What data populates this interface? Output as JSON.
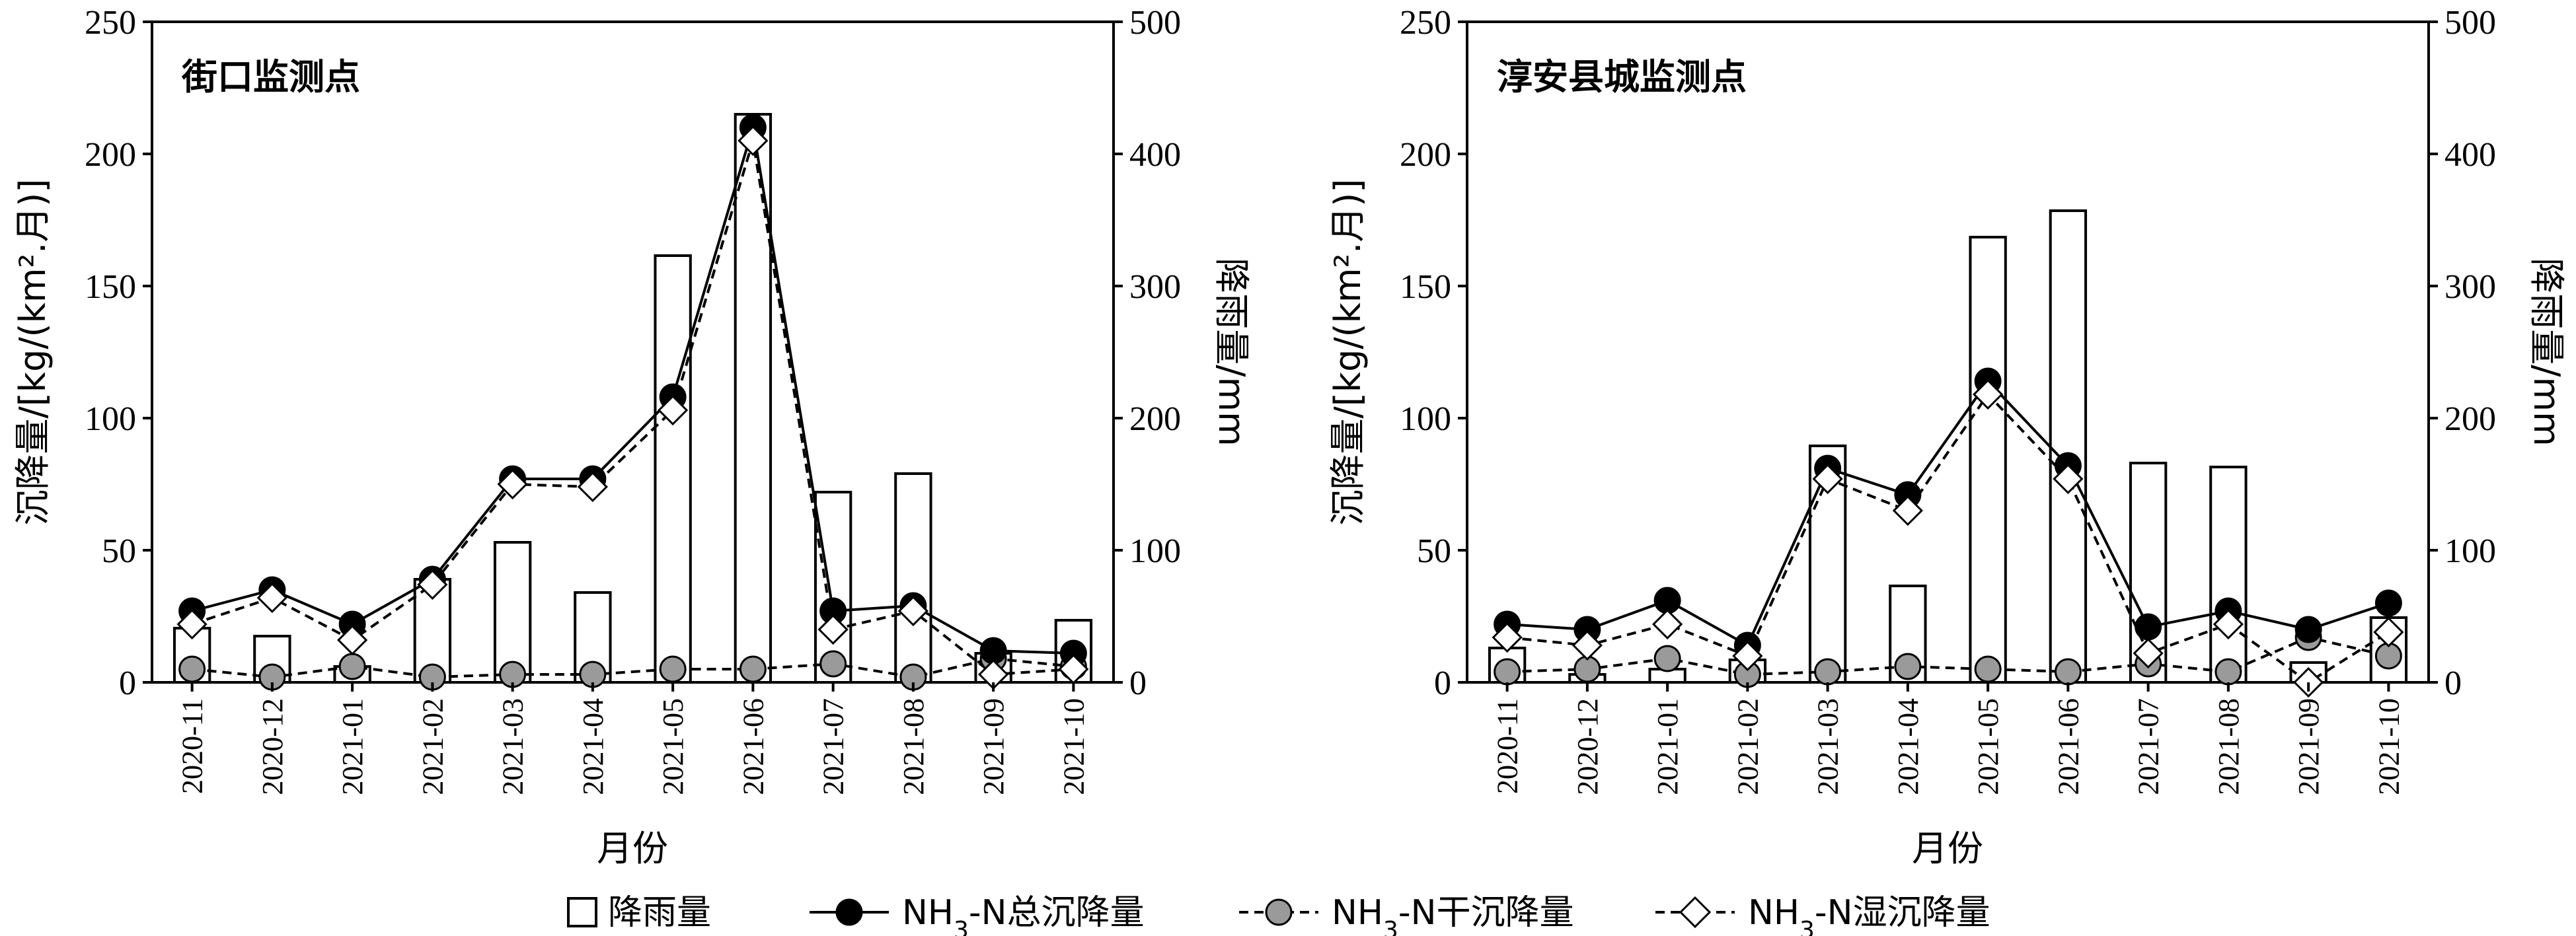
{
  "chart_data": [
    {
      "type": "bar+line",
      "title": "街口监测点",
      "xlabel": "月份",
      "ylabel_left": "沉降量/[kg/(km².月)]",
      "ylabel_right": "降雨量/mm",
      "ylim_left": [
        0,
        250
      ],
      "ylim_right": [
        0,
        500
      ],
      "yticks_left": [
        "0",
        "50",
        "100",
        "150",
        "200",
        "250"
      ],
      "yticks_right": [
        "0",
        "100",
        "200",
        "300",
        "400",
        "500"
      ],
      "categories": [
        "2020-11",
        "2020-12",
        "2021-01",
        "2021-02",
        "2021-03",
        "2021-04",
        "2021-05",
        "2021-06",
        "2021-07",
        "2021-08",
        "2021-09",
        "2021-10"
      ],
      "rainfall": [
        41,
        35,
        12,
        78,
        106,
        68,
        323,
        430,
        144,
        158,
        22,
        47
      ],
      "total": [
        27,
        35,
        22,
        39,
        77,
        77,
        108,
        210,
        27,
        29,
        12,
        11
      ],
      "dry": [
        5,
        2,
        6,
        2,
        3,
        3,
        5,
        5,
        7,
        2,
        9,
        6
      ],
      "wet": [
        22,
        32,
        16,
        37,
        75,
        74,
        103,
        205,
        20,
        27,
        3,
        5
      ]
    },
    {
      "type": "bar+line",
      "title": "淳安县城监测点",
      "xlabel": "月份",
      "ylabel_left": "沉降量/[kg/(km².月)]",
      "ylabel_right": "降雨量/mm",
      "ylim_left": [
        0,
        250
      ],
      "ylim_right": [
        0,
        500
      ],
      "yticks_left": [
        "0",
        "50",
        "100",
        "150",
        "200",
        "250"
      ],
      "yticks_right": [
        "0",
        "100",
        "200",
        "300",
        "400",
        "500"
      ],
      "categories": [
        "2020-11",
        "2020-12",
        "2021-01",
        "2021-02",
        "2021-03",
        "2021-04",
        "2021-05",
        "2021-06",
        "2021-07",
        "2021-08",
        "2021-09",
        "2021-10"
      ],
      "rainfall": [
        26,
        6,
        10,
        17,
        179,
        73,
        337,
        357,
        166,
        163,
        15,
        49
      ],
      "total": [
        22,
        20,
        31,
        14,
        81,
        71,
        114,
        82,
        21,
        27,
        20,
        30
      ],
      "dry": [
        4,
        5,
        9,
        3,
        4,
        6,
        5,
        4,
        7,
        4,
        17,
        10
      ],
      "wet": [
        17,
        14,
        22,
        10,
        77,
        65,
        109,
        77,
        11,
        22,
        0,
        19
      ]
    }
  ],
  "legend": {
    "rain": "降雨量",
    "total_prefix": "NH",
    "total_sub": "3",
    "total_suffix": "-N总沉降量",
    "dry_prefix": "NH",
    "dry_sub": "3",
    "dry_suffix": "-N干沉降量",
    "wet_prefix": "NH",
    "wet_sub": "3",
    "wet_suffix": "-N湿沉降量"
  }
}
